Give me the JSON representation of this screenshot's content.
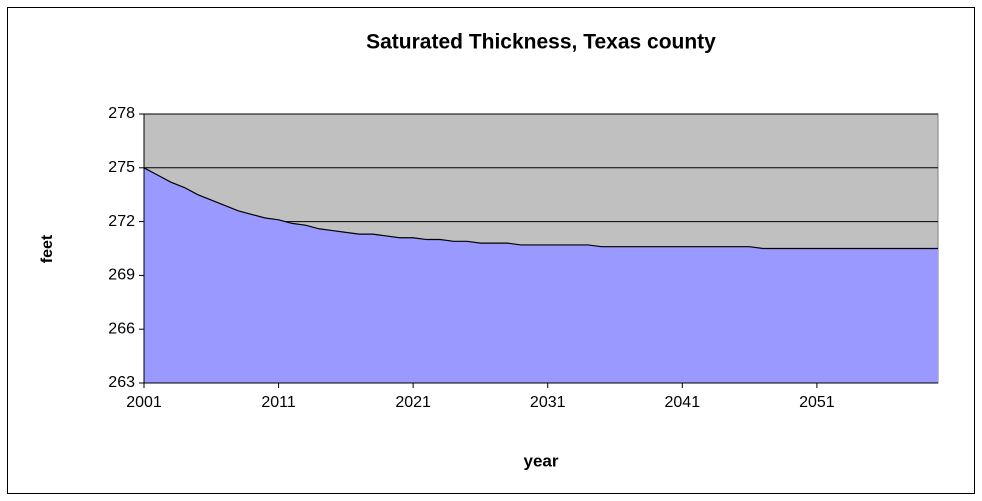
{
  "chart_data": {
    "type": "area",
    "title": "Saturated Thickness, Texas county",
    "xlabel": "year",
    "ylabel": "feet",
    "x": [
      2001,
      2002,
      2003,
      2004,
      2005,
      2006,
      2007,
      2008,
      2009,
      2010,
      2011,
      2012,
      2013,
      2014,
      2015,
      2016,
      2017,
      2018,
      2019,
      2020,
      2021,
      2022,
      2023,
      2024,
      2025,
      2026,
      2027,
      2028,
      2029,
      2030,
      2031,
      2032,
      2033,
      2034,
      2035,
      2036,
      2037,
      2038,
      2039,
      2040,
      2041,
      2042,
      2043,
      2044,
      2045,
      2046,
      2047,
      2048,
      2049,
      2050,
      2051,
      2052,
      2053,
      2054,
      2055,
      2056,
      2057,
      2058,
      2059,
      2060
    ],
    "values": [
      275.0,
      274.6,
      274.2,
      273.9,
      273.5,
      273.2,
      272.9,
      272.6,
      272.4,
      272.2,
      272.1,
      271.9,
      271.8,
      271.6,
      271.5,
      271.4,
      271.3,
      271.3,
      271.2,
      271.1,
      271.1,
      271.0,
      271.0,
      270.9,
      270.9,
      270.8,
      270.8,
      270.8,
      270.7,
      270.7,
      270.7,
      270.7,
      270.7,
      270.7,
      270.6,
      270.6,
      270.6,
      270.6,
      270.6,
      270.6,
      270.6,
      270.6,
      270.6,
      270.6,
      270.6,
      270.6,
      270.5,
      270.5,
      270.5,
      270.5,
      270.5,
      270.5,
      270.5,
      270.5,
      270.5,
      270.5,
      270.5,
      270.5,
      270.5,
      270.5
    ],
    "color": "#9999ff",
    "background": "#c0c0c0",
    "xlim": [
      2001,
      2060
    ],
    "xticks": [
      2001,
      2011,
      2021,
      2031,
      2041,
      2051
    ],
    "ylim": [
      263,
      278
    ],
    "yticks": [
      263,
      266,
      269,
      272,
      275,
      278
    ],
    "grid": true
  }
}
